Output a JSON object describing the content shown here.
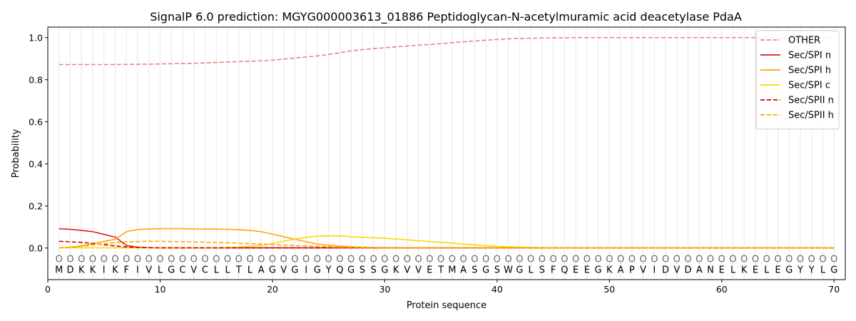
{
  "chart_data": {
    "type": "line",
    "title": "SignalP 6.0 prediction: MGYG000003613_01886 Peptidoglycan-N-acetylmuramic acid deacetylase PdaA",
    "xlabel": "Protein sequence",
    "ylabel": "Probability",
    "xlim": [
      0,
      71
    ],
    "ylim": [
      -0.15,
      1.05
    ],
    "xticks": [
      0,
      10,
      20,
      30,
      40,
      50,
      60,
      70
    ],
    "yticks": [
      0.0,
      0.2,
      0.4,
      0.6,
      0.8,
      1.0
    ],
    "ytick_labels": [
      "0.0",
      "0.2",
      "0.4",
      "0.6",
      "0.8",
      "1.0"
    ],
    "grid": "vertical lines at each residue",
    "legend_position": "top-right",
    "sequence": [
      "M",
      "D",
      "K",
      "K",
      "I",
      "K",
      "F",
      "I",
      "V",
      "L",
      "G",
      "C",
      "V",
      "C",
      "L",
      "L",
      "T",
      "L",
      "A",
      "G",
      "V",
      "G",
      "I",
      "G",
      "Y",
      "Q",
      "G",
      "S",
      "S",
      "G",
      "K",
      "V",
      "V",
      "E",
      "T",
      "M",
      "A",
      "S",
      "G",
      "S",
      "W",
      "G",
      "L",
      "S",
      "F",
      "Q",
      "E",
      "E",
      "G",
      "K",
      "A",
      "P",
      "V",
      "I",
      "D",
      "V",
      "D",
      "A",
      "N",
      "E",
      "L",
      "K",
      "E",
      "L",
      "E",
      "G",
      "Y",
      "Y",
      "L",
      "G"
    ],
    "region_labels": [
      "O",
      "O",
      "O",
      "O",
      "O",
      "O",
      "O",
      "O",
      "O",
      "O",
      "O",
      "O",
      "O",
      "O",
      "O",
      "O",
      "O",
      "O",
      "O",
      "O",
      "O",
      "O",
      "O",
      "O",
      "O",
      "O",
      "O",
      "O",
      "O",
      "O",
      "O",
      "O",
      "O",
      "O",
      "O",
      "O",
      "O",
      "O",
      "O",
      "O",
      "O",
      "O",
      "O",
      "O",
      "O",
      "O",
      "O",
      "O",
      "O",
      "O",
      "O",
      "O",
      "O",
      "O",
      "O",
      "O",
      "O",
      "O",
      "O",
      "O",
      "O",
      "O",
      "O",
      "O",
      "O",
      "O",
      "O",
      "O",
      "O",
      "O"
    ],
    "series": [
      {
        "name": "OTHER",
        "color": "#f08080",
        "dash": "dashed",
        "values": [
          0.872,
          0.872,
          0.872,
          0.872,
          0.872,
          0.872,
          0.873,
          0.873,
          0.874,
          0.875,
          0.876,
          0.877,
          0.878,
          0.88,
          0.882,
          0.884,
          0.886,
          0.888,
          0.89,
          0.893,
          0.898,
          0.903,
          0.908,
          0.913,
          0.92,
          0.928,
          0.937,
          0.943,
          0.948,
          0.952,
          0.956,
          0.96,
          0.964,
          0.967,
          0.971,
          0.976,
          0.98,
          0.984,
          0.988,
          0.991,
          0.994,
          0.996,
          0.997,
          0.998,
          0.999,
          0.999,
          1.0,
          1.0,
          1.0,
          1.0,
          1.0,
          1.0,
          1.0,
          1.0,
          1.0,
          1.0,
          1.0,
          1.0,
          1.0,
          1.0,
          1.0,
          1.0,
          1.0,
          1.0,
          1.0,
          1.0,
          1.0,
          1.0,
          1.0,
          1.0
        ]
      },
      {
        "name": "Sec/SPI n",
        "color": "#e31a1c",
        "dash": "solid",
        "values": [
          0.092,
          0.089,
          0.084,
          0.078,
          0.065,
          0.052,
          0.012,
          0.004,
          0.002,
          0.001,
          0.001,
          0.001,
          0.001,
          0.001,
          0.001,
          0.001,
          0.001,
          0.001,
          0.001,
          0.001,
          0.001,
          0.001,
          0.001,
          0.001,
          0.001,
          0.001,
          0.001,
          0.001,
          0.001,
          0.001,
          0.001,
          0.001,
          0.001,
          0.001,
          0.001,
          0.001,
          0.001,
          0.001,
          0.001,
          0.001,
          0.001,
          0.001,
          0.001,
          0.001,
          0.001,
          0.001,
          0.001,
          0.001,
          0.001,
          0.001,
          0.001,
          0.001,
          0.001,
          0.001,
          0.001,
          0.001,
          0.001,
          0.001,
          0.001,
          0.001,
          0.001,
          0.001,
          0.001,
          0.001,
          0.001,
          0.001,
          0.001,
          0.001,
          0.001,
          0.001
        ]
      },
      {
        "name": "Sec/SPI h",
        "color": "#ffa500",
        "dash": "solid",
        "values": [
          0.001,
          0.004,
          0.01,
          0.02,
          0.032,
          0.042,
          0.078,
          0.088,
          0.091,
          0.092,
          0.092,
          0.092,
          0.091,
          0.091,
          0.09,
          0.089,
          0.087,
          0.084,
          0.078,
          0.066,
          0.054,
          0.042,
          0.03,
          0.019,
          0.013,
          0.009,
          0.006,
          0.004,
          0.003,
          0.002,
          0.002,
          0.001,
          0.001,
          0.001,
          0.001,
          0.001,
          0.001,
          0.001,
          0.001,
          0.001,
          0.001,
          0.001,
          0.001,
          0.001,
          0.001,
          0.001,
          0.001,
          0.001,
          0.001,
          0.001,
          0.001,
          0.001,
          0.001,
          0.001,
          0.001,
          0.001,
          0.001,
          0.001,
          0.001,
          0.001,
          0.001,
          0.001,
          0.001,
          0.001,
          0.001,
          0.001,
          0.001,
          0.001,
          0.001,
          0.001
        ]
      },
      {
        "name": "Sec/SPI c",
        "color": "#ffd700",
        "dash": "solid",
        "values": [
          0.001,
          0.001,
          0.001,
          0.001,
          0.001,
          0.001,
          0.001,
          0.001,
          0.001,
          0.001,
          0.001,
          0.001,
          0.001,
          0.001,
          0.002,
          0.003,
          0.005,
          0.008,
          0.013,
          0.022,
          0.033,
          0.043,
          0.051,
          0.057,
          0.058,
          0.058,
          0.054,
          0.051,
          0.049,
          0.046,
          0.043,
          0.039,
          0.035,
          0.031,
          0.027,
          0.023,
          0.019,
          0.015,
          0.011,
          0.008,
          0.006,
          0.004,
          0.003,
          0.002,
          0.002,
          0.001,
          0.001,
          0.001,
          0.001,
          0.001,
          0.001,
          0.001,
          0.001,
          0.001,
          0.001,
          0.001,
          0.001,
          0.001,
          0.001,
          0.001,
          0.001,
          0.001,
          0.001,
          0.001,
          0.001,
          0.001,
          0.001,
          0.001,
          0.001,
          0.001
        ]
      },
      {
        "name": "Sec/SPII n",
        "color": "#cc0000",
        "dash": "dashed",
        "values": [
          0.032,
          0.03,
          0.027,
          0.022,
          0.016,
          0.01,
          0.005,
          0.003,
          0.002,
          0.001,
          0.001,
          0.001,
          0.001,
          0.001,
          0.001,
          0.001,
          0.001,
          0.001,
          0.001,
          0.001,
          0.001,
          0.001,
          0.001,
          0.001,
          0.001,
          0.001,
          0.001,
          0.001,
          0.001,
          0.001,
          0.001,
          0.001,
          0.001,
          0.001,
          0.001,
          0.001,
          0.001,
          0.001,
          0.001,
          0.001,
          0.001,
          0.001,
          0.001,
          0.001,
          0.001,
          0.001,
          0.001,
          0.001,
          0.001,
          0.001,
          0.001,
          0.001,
          0.001,
          0.001,
          0.001,
          0.001,
          0.001,
          0.001,
          0.001,
          0.001,
          0.001,
          0.001,
          0.001,
          0.001,
          0.001,
          0.001,
          0.001,
          0.001,
          0.001,
          0.001
        ]
      },
      {
        "name": "Sec/SPII h",
        "color": "#ffa500",
        "dash": "dashed",
        "values": [
          0.001,
          0.003,
          0.008,
          0.015,
          0.021,
          0.026,
          0.029,
          0.031,
          0.032,
          0.032,
          0.031,
          0.03,
          0.029,
          0.028,
          0.027,
          0.025,
          0.023,
          0.021,
          0.019,
          0.017,
          0.014,
          0.012,
          0.01,
          0.008,
          0.006,
          0.004,
          0.003,
          0.002,
          0.002,
          0.001,
          0.001,
          0.001,
          0.001,
          0.001,
          0.001,
          0.001,
          0.001,
          0.001,
          0.001,
          0.001,
          0.001,
          0.001,
          0.001,
          0.001,
          0.001,
          0.001,
          0.001,
          0.001,
          0.001,
          0.001,
          0.001,
          0.001,
          0.001,
          0.001,
          0.001,
          0.001,
          0.001,
          0.001,
          0.001,
          0.001,
          0.001,
          0.001,
          0.001,
          0.001,
          0.001,
          0.001,
          0.001,
          0.001,
          0.001,
          0.001
        ]
      }
    ]
  }
}
